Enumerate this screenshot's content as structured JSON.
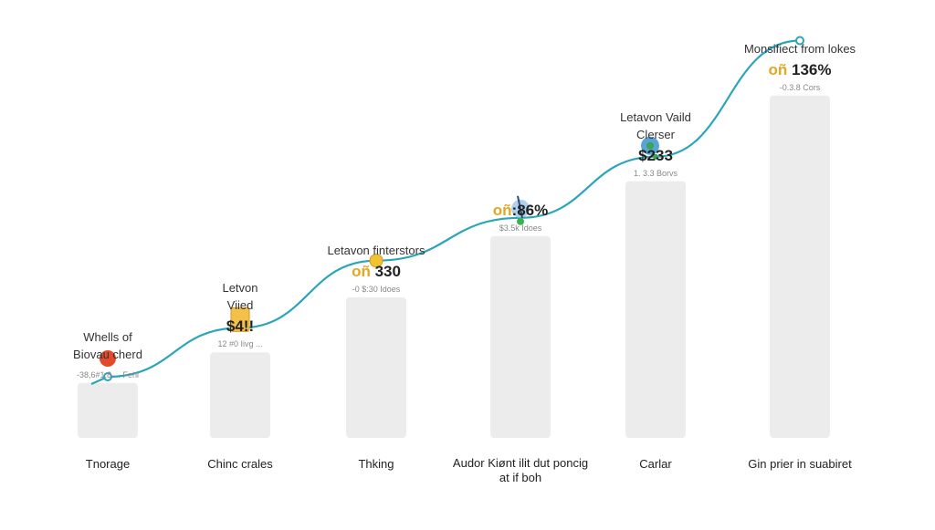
{
  "chart_data": {
    "type": "bar",
    "categories": [
      "Tnorage",
      "Chinc crales",
      "Thking",
      "Audor Kiønt ilit dut poncig at if boh",
      "Carlar",
      "Gin prier in suabiret"
    ],
    "values": [
      0.9,
      1.4,
      2.3,
      3.3,
      4.2,
      5.6
    ],
    "line_values": [
      1.0,
      1.8,
      2.9,
      3.6,
      4.6,
      6.5
    ],
    "series": [
      {
        "values": [
          0.9,
          1.4,
          2.3,
          3.3,
          4.2,
          5.6
        ]
      },
      {
        "values": [
          1.0,
          1.8,
          2.9,
          3.6,
          4.6,
          6.5
        ]
      }
    ],
    "annotations": [
      {
        "note": [
          "Whells of",
          "Biovau cherd"
        ],
        "value": "",
        "brand": "",
        "sub": "-38,6#1.8 ... Fehi"
      },
      {
        "note": [
          "Letvon",
          "Viied"
        ],
        "value": "$4!!",
        "brand": "",
        "sub": "12 #0 Iivg ..."
      },
      {
        "note": [
          "Letavon finterstors"
        ],
        "value": " 330",
        "brand": "oñ",
        "sub": "-0 $:30 Idoes"
      },
      {
        "note": [],
        "value": ":86%",
        "brand": "oñ",
        "sub": "$3.5k Idoes"
      },
      {
        "note": [
          "Letavon Vaild",
          "Clerser"
        ],
        "value": "$233",
        "brand": "",
        "sub": "1. 3.3 Borvs"
      },
      {
        "note": [
          "Monsifiect from lokes"
        ],
        "value": " 136%",
        "brand": "oñ",
        "sub": "-0.3.8 Cors"
      }
    ],
    "colors": {
      "bar": "#ececec",
      "line": "#2aa6b8",
      "brand": "#e2a823"
    },
    "marker_icons": [
      "balloon-icon",
      "lantern-icon",
      "coin-icon",
      "skier-icon",
      "globe-icon",
      "dot-icon"
    ],
    "grid": false
  }
}
